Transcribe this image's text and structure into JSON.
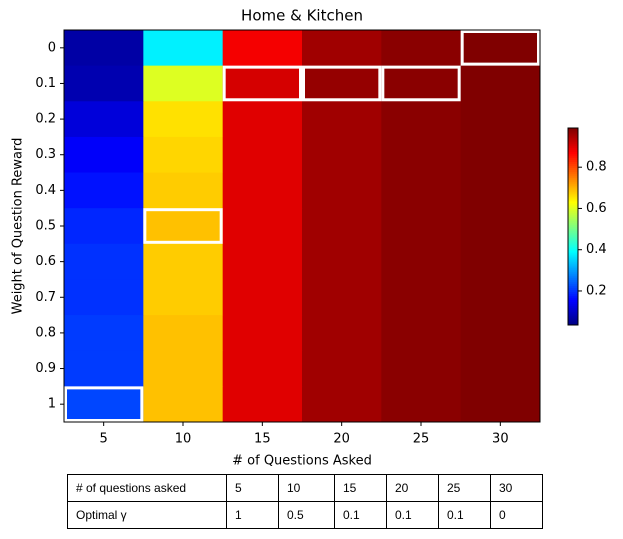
{
  "chart_data": {
    "type": "heatmap",
    "title": "Home & Kitchen",
    "x_label": "# of Questions Asked",
    "y_label": "Weight of Question Reward",
    "x_categories": [
      "5",
      "10",
      "15",
      "20",
      "25",
      "30"
    ],
    "y_categories": [
      "0",
      "0.1",
      "0.2",
      "0.3",
      "0.4",
      "0.5",
      "0.6",
      "0.7",
      "0.8",
      "0.9",
      "1"
    ],
    "values": [
      [
        0.07,
        0.38,
        0.88,
        0.96,
        0.98,
        0.99
      ],
      [
        0.08,
        0.6,
        0.91,
        0.97,
        0.98,
        0.99
      ],
      [
        0.12,
        0.66,
        0.9,
        0.96,
        0.98,
        0.99
      ],
      [
        0.15,
        0.67,
        0.9,
        0.96,
        0.98,
        0.99
      ],
      [
        0.17,
        0.68,
        0.9,
        0.96,
        0.98,
        0.99
      ],
      [
        0.19,
        0.69,
        0.9,
        0.96,
        0.98,
        0.99
      ],
      [
        0.2,
        0.68,
        0.9,
        0.96,
        0.98,
        0.99
      ],
      [
        0.2,
        0.68,
        0.9,
        0.96,
        0.98,
        0.99
      ],
      [
        0.21,
        0.69,
        0.9,
        0.96,
        0.98,
        0.99
      ],
      [
        0.21,
        0.69,
        0.9,
        0.96,
        0.98,
        0.99
      ],
      [
        0.22,
        0.69,
        0.9,
        0.96,
        0.98,
        0.99
      ]
    ],
    "colormap": "jet",
    "clim": [
      0.035,
      0.99
    ],
    "cticks": [
      0.2,
      0.4,
      0.6,
      0.8
    ],
    "highlight": [
      [
        10,
        0
      ],
      [
        5,
        1
      ],
      [
        1,
        2
      ],
      [
        1,
        3
      ],
      [
        1,
        4
      ],
      [
        0,
        5
      ]
    ],
    "highlight_color": "#ffffff"
  },
  "table": {
    "rows": [
      [
        "# of questions asked",
        "5",
        "10",
        "15",
        "20",
        "25",
        "30"
      ],
      [
        "Optimal γ",
        "1",
        "0.5",
        "0.1",
        "0.1",
        "0.1",
        "0"
      ]
    ]
  }
}
